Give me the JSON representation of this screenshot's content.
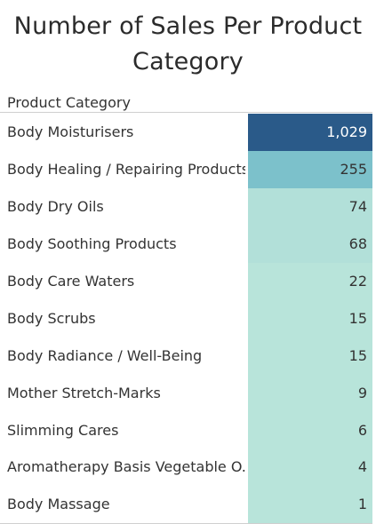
{
  "chart_data": {
    "type": "table",
    "title": "Number of Sales Per Product Category",
    "column_header": "Product Category",
    "categories": [
      "Body Moisturisers",
      "Body Healing / Repairing Products",
      "Body Dry Oils",
      "Body Soothing Products",
      "Body Care Waters",
      "Body Scrubs",
      "Body Radiance / Well-Being",
      "Mother Stretch-Marks",
      "Slimming Cares",
      "Aromatherapy Basis Vegetable O..",
      "Body Massage"
    ],
    "values": [
      1029,
      255,
      74,
      68,
      22,
      15,
      15,
      9,
      6,
      4,
      1
    ],
    "value_labels": [
      "1,029",
      "255",
      "74",
      "68",
      "22",
      "15",
      "15",
      "9",
      "6",
      "4",
      "1"
    ],
    "colors": {
      "high": "#2a5a89",
      "mid": "#7cc1cb",
      "low_a": "#b2e0d9",
      "low_b": "#b8e4da",
      "text_light": "#ffffff",
      "text_dark": "#333333"
    }
  }
}
